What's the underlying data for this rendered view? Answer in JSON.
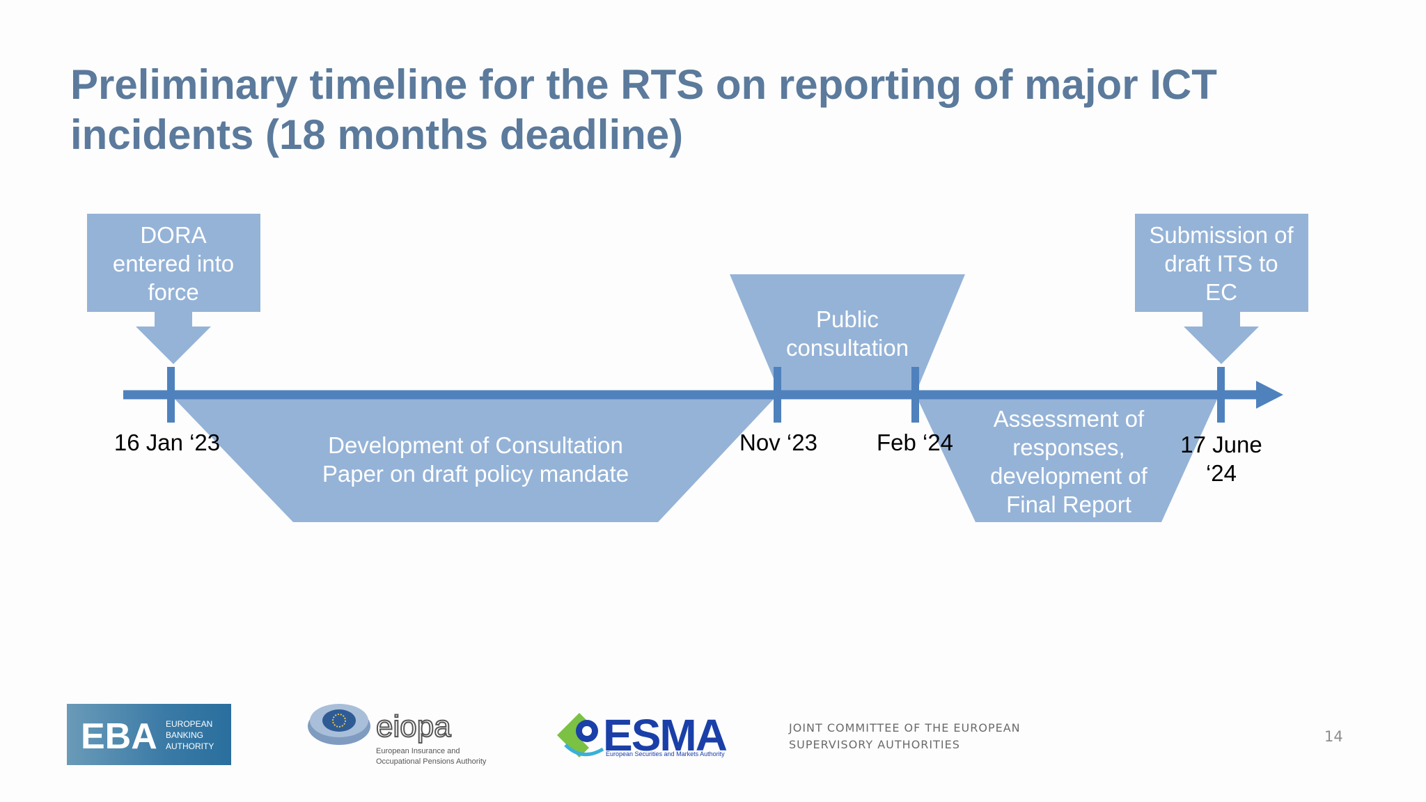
{
  "slide": {
    "title_line1": "Preliminary timeline for the RTS on reporting of major ICT",
    "title_line2": "incidents (18 months deadline)"
  },
  "timeline": {
    "milestones": [
      {
        "date_line1": "16 Jan ‘23",
        "date_line2": ""
      },
      {
        "date_line1": "Nov ‘23",
        "date_line2": ""
      },
      {
        "date_line1": "Feb ‘24",
        "date_line2": ""
      },
      {
        "date_line1": "17 June",
        "date_line2": "‘24"
      }
    ],
    "callouts": [
      {
        "lines": [
          "DORA",
          "entered into",
          "force"
        ]
      },
      {
        "lines": [
          "Submission of",
          "draft ITS to",
          "EC"
        ]
      }
    ],
    "phases": [
      {
        "lines": [
          "Public",
          "consultation"
        ]
      },
      {
        "lines": [
          "Development of Consultation",
          "Paper on draft policy mandate"
        ]
      },
      {
        "lines": [
          "Assessment of",
          "responses,",
          "development of",
          "Final Report"
        ]
      }
    ]
  },
  "footer": {
    "eba_abbr": "EBA",
    "eba_line1": "EUROPEAN",
    "eba_line2": "BANKING",
    "eba_line3": "AUTHORITY",
    "eiopa_name": "eiopa",
    "eiopa_sub1": "European Insurance and",
    "eiopa_sub2": "Occupational Pensions Authority",
    "esma_name": "ESMA",
    "esma_sub": "European Securities and Markets Authority",
    "joint_line1": "JOINT COMMITTEE OF THE EUROPEAN",
    "joint_line2": "SUPERVISORY AUTHORITIES",
    "page_number": "14"
  },
  "colors": {
    "title": "#5b7a9c",
    "shape_fill": "#95b3d7",
    "axis": "#4f81bd",
    "eba_blue": "#2a6f9e",
    "esma_blue": "#1a3fa8"
  }
}
